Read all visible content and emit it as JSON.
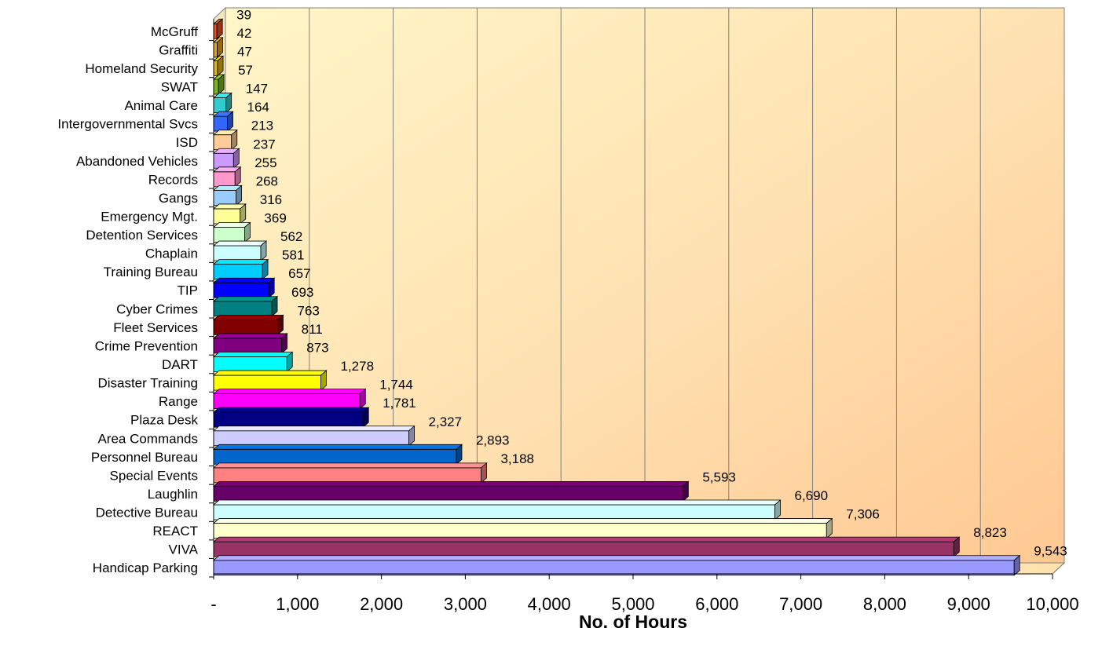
{
  "chart_data": {
    "type": "bar",
    "orientation": "horizontal",
    "xlabel": "No. of Hours",
    "ylabel": "",
    "xlim": [
      0,
      10000
    ],
    "x_tick_labels": [
      "-",
      "1,000",
      "2,000",
      "3,000",
      "4,000",
      "5,000",
      "6,000",
      "7,000",
      "8,000",
      "9,000",
      "10,000"
    ],
    "grid": "vertical",
    "legend": "none",
    "background": "gradient light yellow to peach",
    "categories": [
      "McGruff",
      "Graffiti",
      "Homeland Security",
      "SWAT",
      "Animal Care",
      "Intergovernmental Svcs",
      "ISD",
      "Abandoned Vehicles",
      "Records",
      "Gangs",
      "Emergency Mgt.",
      "Detention Services",
      "Chaplain",
      "Training Bureau",
      "TIP",
      "Cyber Crimes",
      "Fleet Services",
      "Crime Prevention",
      "DART",
      "Disaster Training",
      "Range",
      "Plaza Desk",
      "Area Commands",
      "Personnel Bureau",
      "Special Events",
      "Laughlin",
      "Detective Bureau",
      "REACT",
      "VIVA",
      "Handicap Parking"
    ],
    "values": [
      39,
      42,
      47,
      57,
      147,
      164,
      213,
      237,
      255,
      268,
      316,
      369,
      562,
      581,
      657,
      693,
      763,
      811,
      873,
      1278,
      1744,
      1781,
      2327,
      2893,
      3188,
      5593,
      6690,
      7306,
      8823,
      9543
    ],
    "value_labels": [
      "39",
      "42",
      "47",
      "57",
      "147",
      "164",
      "213",
      "237",
      "255",
      "268",
      "316",
      "369",
      "562",
      "581",
      "657",
      "693",
      "763",
      "811",
      "873",
      "1,278",
      "1,744",
      "1,781",
      "2,327",
      "2,893",
      "3,188",
      "5,593",
      "6,690",
      "7,306",
      "8,823",
      "9,543"
    ],
    "colors": [
      "#E8501E",
      "#E8A317",
      "#E0B21A",
      "#7CB518",
      "#33CCCC",
      "#3366FF",
      "#FFCC99",
      "#CC99FF",
      "#FF99CC",
      "#99CCFF",
      "#FFFF99",
      "#CCFFCC",
      "#CCFFFF",
      "#00CCFF",
      "#0000FF",
      "#008080",
      "#800000",
      "#800080",
      "#00FFFF",
      "#FFFF00",
      "#FF00FF",
      "#000080",
      "#CCCCFF",
      "#0066CC",
      "#FF8080",
      "#660066",
      "#CCFFFF",
      "#FFFFCC",
      "#993366",
      "#9999FF"
    ]
  }
}
